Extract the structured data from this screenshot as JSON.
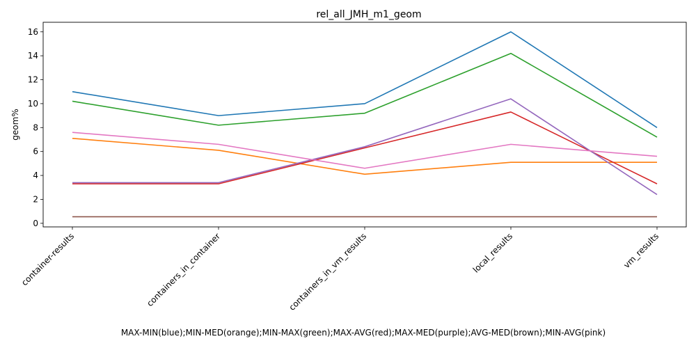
{
  "chart_data": {
    "type": "line",
    "title": "rel_all_JMH_m1_geom",
    "xlabel": "MAX-MIN(blue);MIN-MED(orange);MIN-MAX(green);MAX-AVG(red);MAX-MED(purple);AVG-MED(brown);MIN-AVG(pink)",
    "ylabel": "geom%",
    "categories": [
      "container-results",
      "containers_in_container",
      "containers_in_vm_results",
      "local_results",
      "vm_results"
    ],
    "ylim": [
      -0.3,
      16.8
    ],
    "yticks": [
      0,
      2,
      4,
      6,
      8,
      10,
      12,
      14,
      16
    ],
    "grid": false,
    "series": [
      {
        "color": "#1f77b4",
        "values": [
          11.0,
          9.0,
          10.0,
          16.0,
          8.0
        ]
      },
      {
        "color": "#ff7f0e",
        "values": [
          7.1,
          6.1,
          4.1,
          5.1,
          5.1
        ]
      },
      {
        "color": "#2ca02c",
        "values": [
          10.2,
          8.2,
          9.2,
          14.2,
          7.2
        ]
      },
      {
        "color": "#d62728",
        "values": [
          3.3,
          3.3,
          6.3,
          9.3,
          3.3
        ]
      },
      {
        "color": "#9467bd",
        "values": [
          3.4,
          3.4,
          6.4,
          10.4,
          2.4
        ]
      },
      {
        "color": "#8c564b",
        "values": [
          0.55,
          0.55,
          0.55,
          0.55,
          0.55
        ]
      },
      {
        "color": "#e377c2",
        "values": [
          7.6,
          6.6,
          4.6,
          6.6,
          5.6
        ]
      }
    ]
  }
}
